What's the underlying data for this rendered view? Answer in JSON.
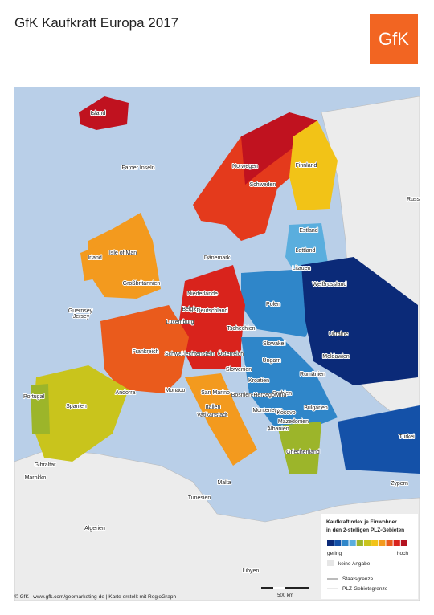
{
  "header": {
    "title": "GfK Kaufkraft Europa 2017",
    "logo": "GfK"
  },
  "map": {
    "labels": [
      "Island",
      "Faroer Inseln",
      "Norwegen",
      "Schweden",
      "Finnland",
      "Russ",
      "Estland",
      "Lettland",
      "Litauen",
      "Weißrussland",
      "Irland",
      "Isle of Man",
      "Dänemark",
      "Großbritannien",
      "Niederlande",
      "Polen",
      "Guernsey",
      "Jersey",
      "Belgien",
      "Deutschland",
      "Luxemburg",
      "Tschechien",
      "Ukraine",
      "Slowakei",
      "Frankreich",
      "Schweiz",
      "Liechtenstein",
      "Österreich",
      "Moldawien",
      "Ungarn",
      "Slowenien",
      "Rumänien",
      "Kroatien",
      "Monaco",
      "Andorra",
      "San Marino",
      "Serbien",
      "Bosnien-Herzegowina",
      "Portugal",
      "Spanien",
      "Montenegro",
      "Bulgarien",
      "Kosovo",
      "Mazedonien",
      "Italien",
      "Vatikanstadt",
      "Albanien",
      "Türkei",
      "Griechenland",
      "Gibraltar",
      "Malta",
      "Marokko",
      "Zypern",
      "Tunesien",
      "Algerien",
      "Libyen"
    ],
    "scale": "500 km"
  },
  "legend": {
    "title": [
      "Kaufkraftindex je Einwohner",
      "in den 2-stelligen PLZ-Gebieten"
    ],
    "colors": [
      "#0b2a78",
      "#1451a8",
      "#2f86c9",
      "#5aaede",
      "#9cb52a",
      "#c9c41c",
      "#f2c317",
      "#f39a1e",
      "#ea5b1c",
      "#d9231c",
      "#b3121f"
    ],
    "low": "gering",
    "high": "hoch",
    "no_data": "keine Angabe",
    "border_state": "Staatsgrenze",
    "border_plz": "PLZ-Gebietsgrenze"
  },
  "footer": "© GfK | www.gfk.com/geomarketing-de | Karte erstellt mit RegioGraph"
}
